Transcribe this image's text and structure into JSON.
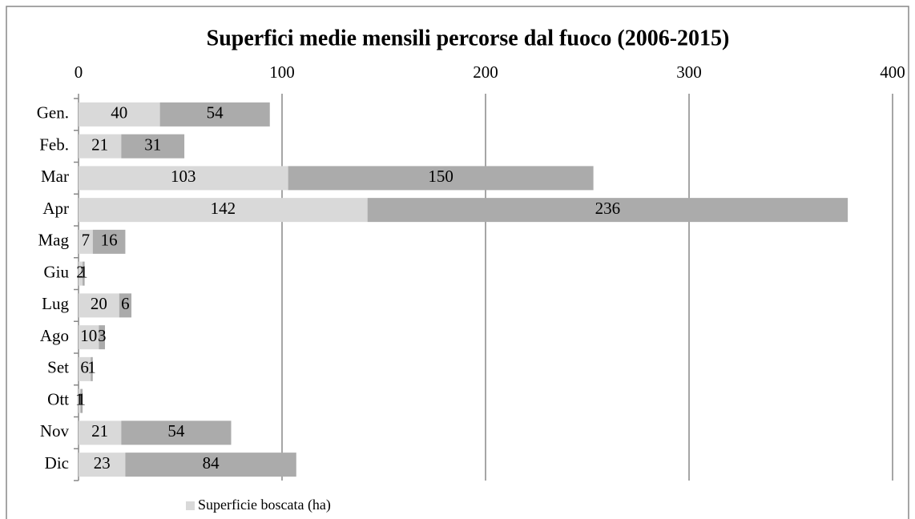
{
  "chart_data": {
    "type": "stacked-bar",
    "orientation": "horizontal",
    "title": "Superfici medie mensili percorse dal fuoco (2006-2015)",
    "categories": [
      "Gen.",
      "Feb.",
      "Mar",
      "Apr",
      "Mag",
      "Giu",
      "Lug",
      "Ago",
      "Set",
      "Ott",
      "Nov",
      "Dic"
    ],
    "series": [
      {
        "name": "Superficie boscata (ha)",
        "color": "#d9d9d9",
        "values": [
          40,
          21,
          103,
          142,
          7,
          2,
          20,
          10,
          6,
          1,
          21,
          23
        ]
      },
      {
        "color": "#ababab",
        "values": [
          54,
          31,
          150,
          236,
          16,
          1,
          6,
          3,
          1,
          1,
          54,
          84
        ]
      }
    ],
    "xlim": [
      0,
      400
    ],
    "xticks": [
      0,
      100,
      200,
      300,
      400
    ],
    "grid": true
  }
}
